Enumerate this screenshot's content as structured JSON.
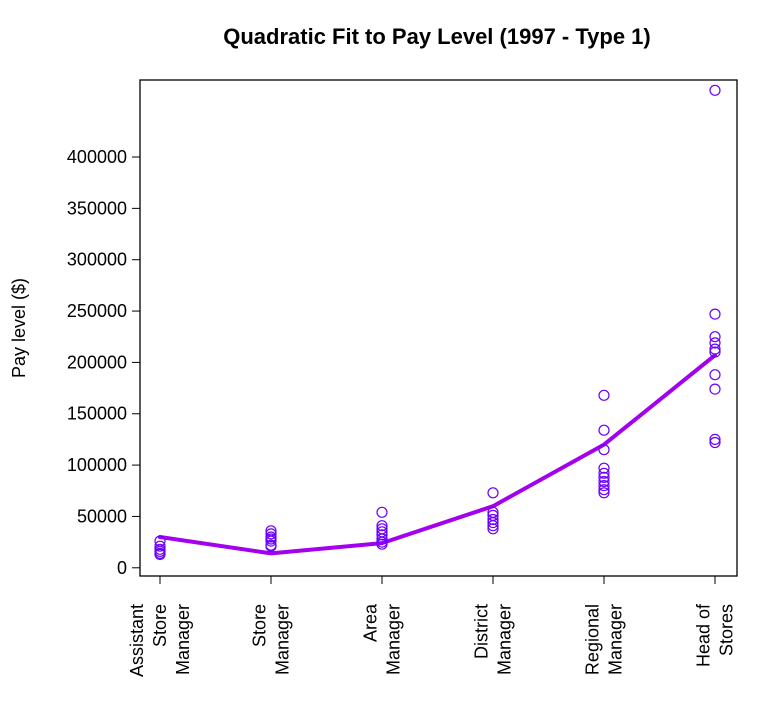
{
  "chart_data": {
    "type": "scatter",
    "title": "Quadratic Fit to Pay Level (1997 - Type 1)",
    "xlabel": "",
    "ylabel": "Pay level ($)",
    "ylim": [
      -8000,
      475000
    ],
    "yticks": [
      0,
      50000,
      100000,
      150000,
      200000,
      250000,
      300000,
      350000,
      400000
    ],
    "ytick_labels": [
      "0",
      "50000",
      "100000",
      "150000",
      "200000",
      "250000",
      "300000",
      "350000",
      "400000"
    ],
    "categories": [
      [
        "Assistant",
        "Store",
        "Manager"
      ],
      [
        "Store",
        "Manager"
      ],
      [
        "Area",
        "Manager"
      ],
      [
        "District",
        "Manager"
      ],
      [
        "Regional",
        "Manager"
      ],
      [
        "Head of",
        "Stores"
      ]
    ],
    "grid": false,
    "series": [
      {
        "type": "scatter",
        "color": "#6a00ff",
        "points": [
          [
            1,
            26000
          ],
          [
            1,
            21000
          ],
          [
            1,
            18000
          ],
          [
            1,
            16000
          ],
          [
            1,
            14000
          ],
          [
            1,
            13000
          ],
          [
            2,
            36000
          ],
          [
            2,
            33000
          ],
          [
            2,
            30000
          ],
          [
            2,
            28000
          ],
          [
            2,
            26000
          ],
          [
            2,
            22000
          ],
          [
            2,
            21000
          ],
          [
            3,
            54000
          ],
          [
            3,
            41000
          ],
          [
            3,
            38000
          ],
          [
            3,
            35000
          ],
          [
            3,
            32000
          ],
          [
            3,
            28000
          ],
          [
            3,
            25000
          ],
          [
            3,
            23000
          ],
          [
            4,
            73000
          ],
          [
            4,
            54000
          ],
          [
            4,
            51000
          ],
          [
            4,
            47000
          ],
          [
            4,
            44000
          ],
          [
            4,
            41000
          ],
          [
            4,
            38000
          ],
          [
            5,
            168000
          ],
          [
            5,
            134000
          ],
          [
            5,
            115000
          ],
          [
            5,
            97000
          ],
          [
            5,
            92000
          ],
          [
            5,
            88000
          ],
          [
            5,
            84000
          ],
          [
            5,
            80000
          ],
          [
            5,
            76000
          ],
          [
            5,
            73000
          ],
          [
            6,
            465000
          ],
          [
            6,
            247000
          ],
          [
            6,
            225000
          ],
          [
            6,
            219000
          ],
          [
            6,
            213000
          ],
          [
            6,
            210000
          ],
          [
            6,
            188000
          ],
          [
            6,
            174000
          ],
          [
            6,
            125000
          ],
          [
            6,
            122000
          ]
        ]
      },
      {
        "type": "line",
        "color": "#a300ee",
        "points": [
          [
            1,
            30000
          ],
          [
            2,
            14000
          ],
          [
            3,
            24000
          ],
          [
            4,
            60000
          ],
          [
            5,
            120000
          ],
          [
            6,
            207000
          ]
        ]
      }
    ]
  }
}
